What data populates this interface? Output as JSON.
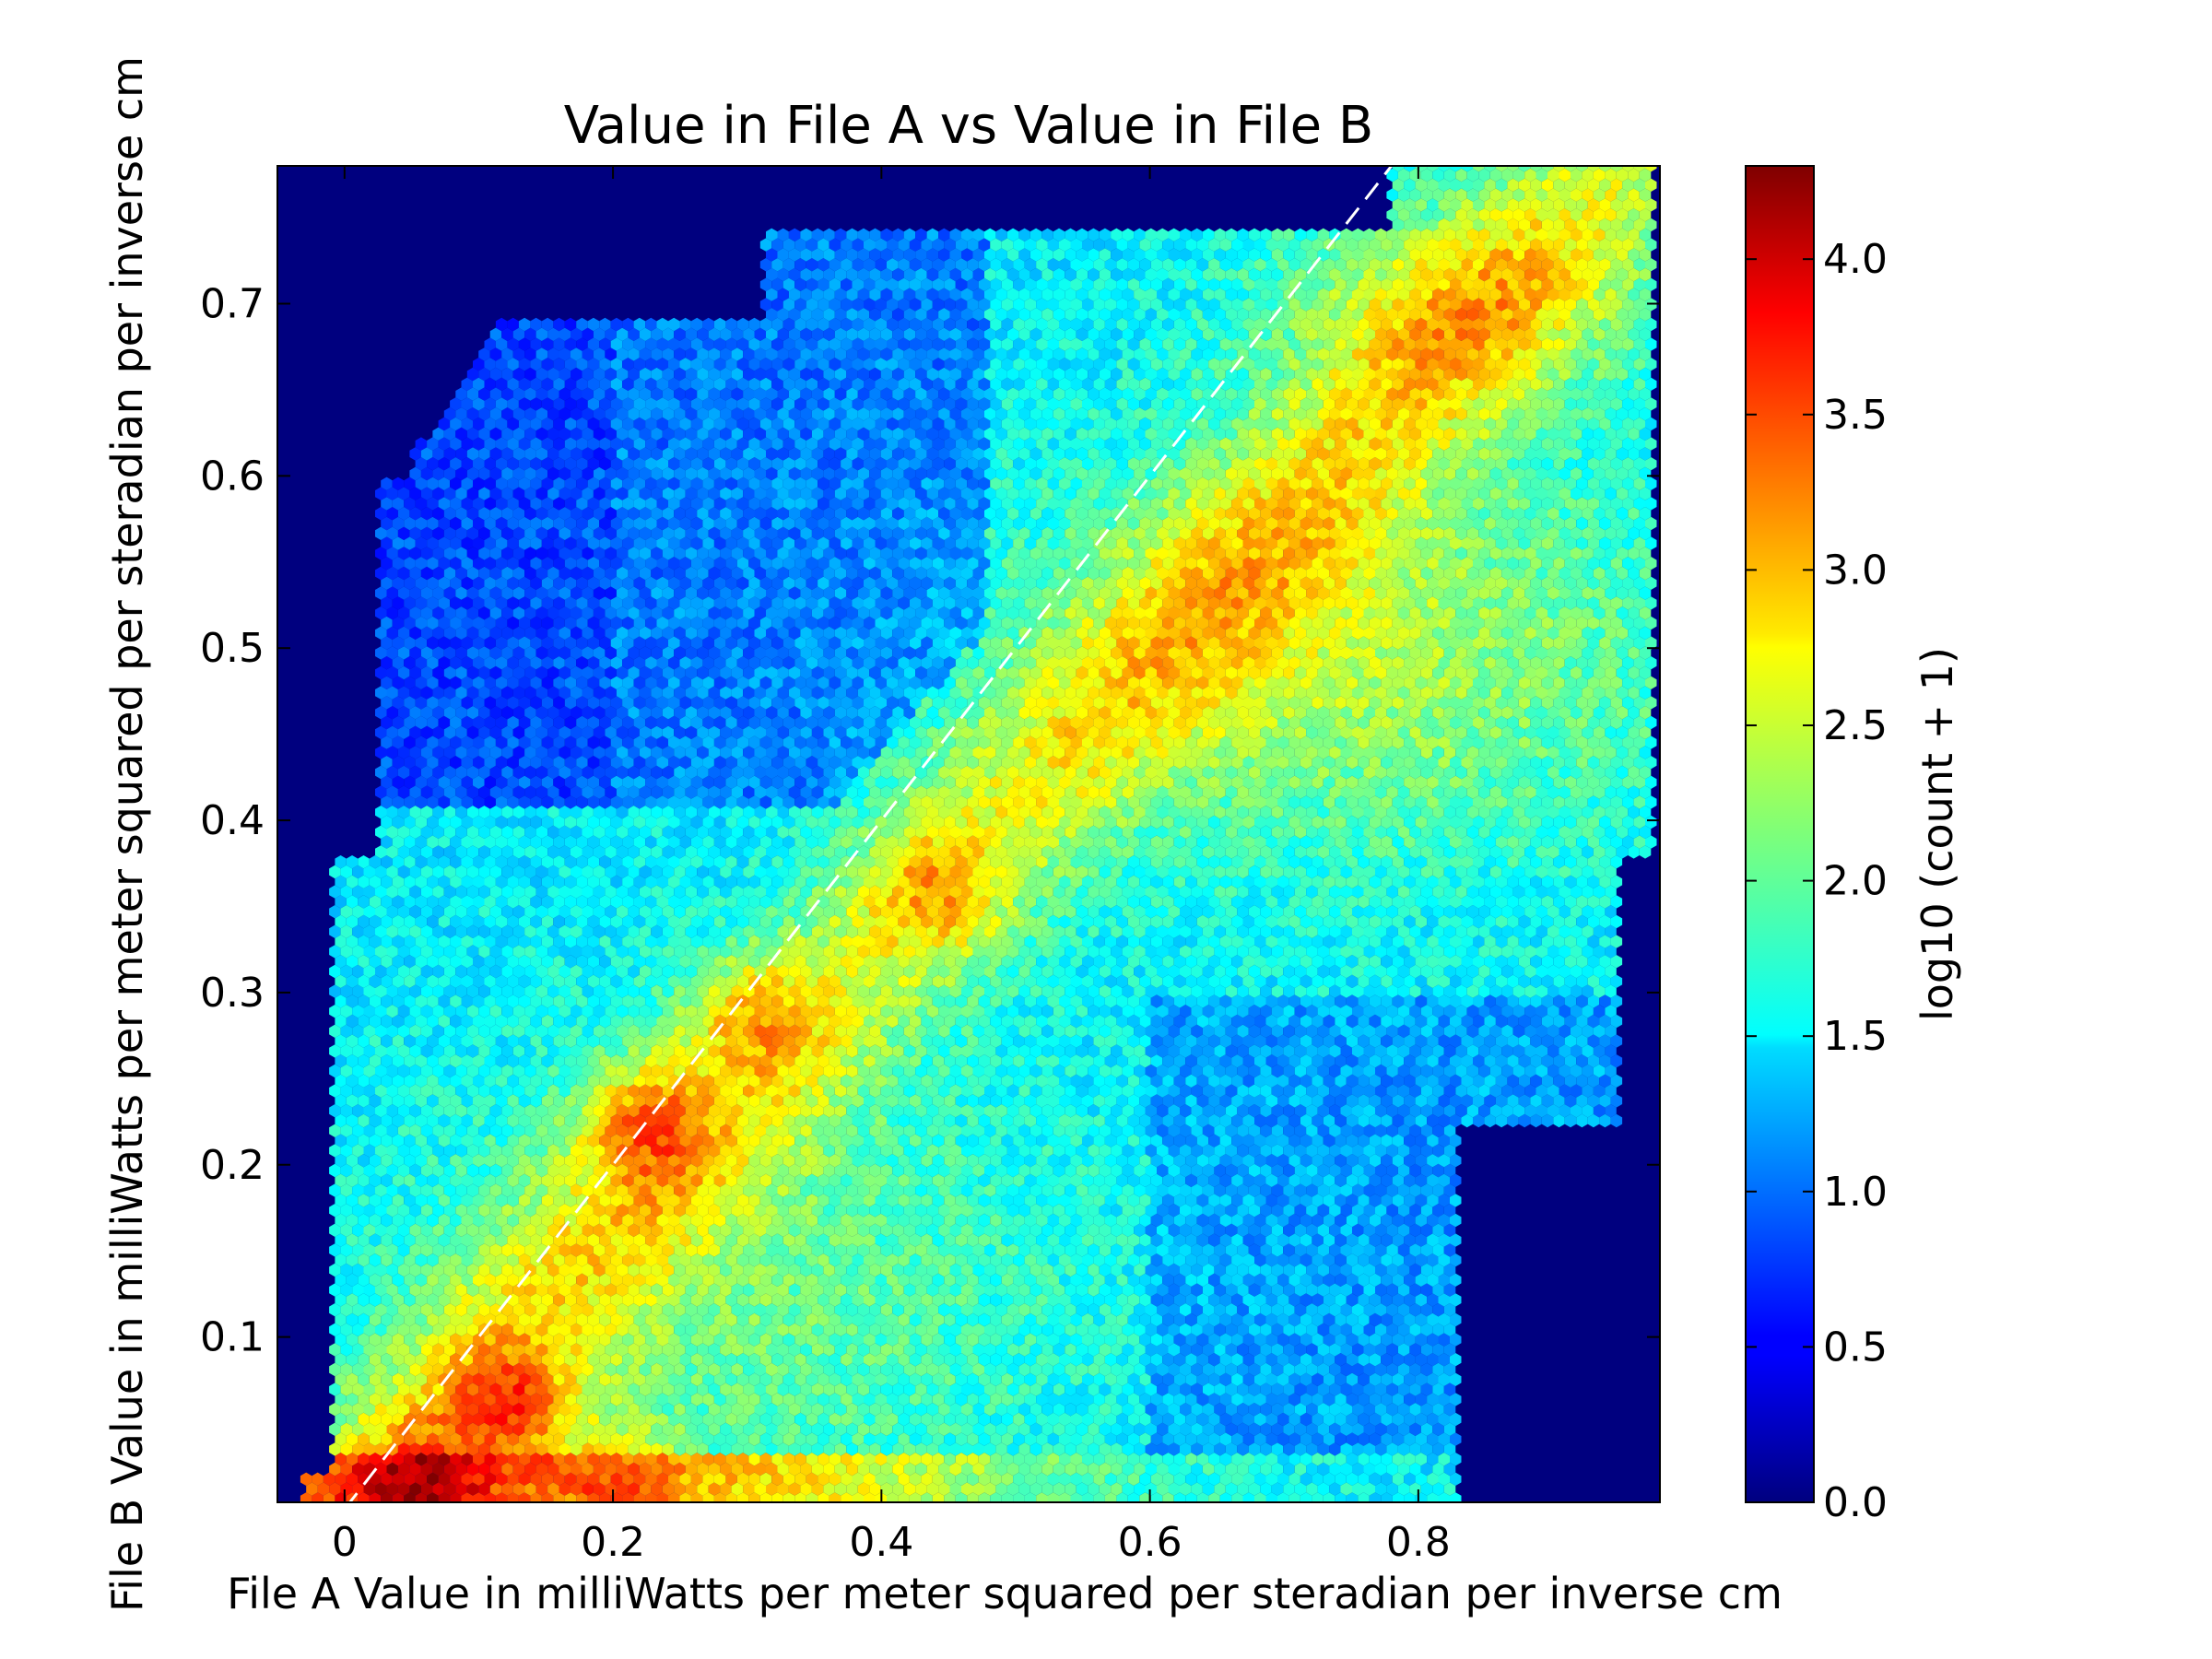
{
  "chart_data": {
    "type": "heatmap",
    "subtype": "hexbin",
    "title": "Value in File A vs Value in File B",
    "xlabel": "File A Value in milliWatts per meter squared per steradian per inverse cm",
    "ylabel": "File B Value in milliWatts per meter squared per steradian per inverse cm",
    "xlim": [
      -0.05,
      0.98
    ],
    "ylim": [
      0.004,
      0.78
    ],
    "x_ticks": [
      0,
      0.2,
      0.4,
      0.6,
      0.8
    ],
    "x_tick_labels": [
      "0",
      "0.2",
      "0.4",
      "0.6",
      "0.8"
    ],
    "y_ticks": [
      0.1,
      0.2,
      0.3,
      0.4,
      0.5,
      0.6,
      0.7
    ],
    "y_tick_labels": [
      "0.1",
      "0.2",
      "0.3",
      "0.4",
      "0.5",
      "0.6",
      "0.7"
    ],
    "colorbar": {
      "label": "log10 (count + 1)",
      "colormap": "jet",
      "range": [
        0.0,
        4.3
      ],
      "ticks": [
        0.0,
        0.5,
        1.0,
        1.5,
        2.0,
        2.5,
        3.0,
        3.5,
        4.0
      ],
      "tick_labels": [
        "0.0",
        "0.5",
        "1.0",
        "1.5",
        "2.0",
        "2.5",
        "3.0",
        "3.5",
        "4.0"
      ]
    },
    "background_color": "#00007f",
    "grid": false,
    "reference_line": {
      "style": "dashed",
      "color": "#ffffff",
      "x": [
        0.0,
        0.78
      ],
      "y": [
        0.0,
        0.78
      ]
    },
    "density_features": [
      {
        "x": 0.06,
        "y": 0.01,
        "log_count": 4.3
      },
      {
        "x": 0.12,
        "y": 0.06,
        "log_count": 3.8
      },
      {
        "x": 0.2,
        "y": 0.01,
        "log_count": 3.5
      },
      {
        "x": 0.23,
        "y": 0.22,
        "log_count": 3.6
      },
      {
        "x": 0.31,
        "y": 0.28,
        "log_count": 3.2
      },
      {
        "x": 0.44,
        "y": 0.36,
        "log_count": 3.2
      },
      {
        "x": 0.5,
        "y": 0.44,
        "log_count": 2.9
      },
      {
        "x": 0.72,
        "y": 0.62,
        "log_count": 3.0
      },
      {
        "x": 0.84,
        "y": 0.73,
        "log_count": 3.0
      },
      {
        "x": 0.82,
        "y": 0.54,
        "log_count": 3.0
      },
      {
        "x": 0.9,
        "y": 0.48,
        "log_count": 2.7
      },
      {
        "x": 0.4,
        "y": 0.01,
        "log_count": 2.9
      },
      {
        "x": 0.6,
        "y": 0.3,
        "log_count": 2.3
      },
      {
        "x": 0.35,
        "y": 0.5,
        "log_count": 1.2
      }
    ]
  }
}
